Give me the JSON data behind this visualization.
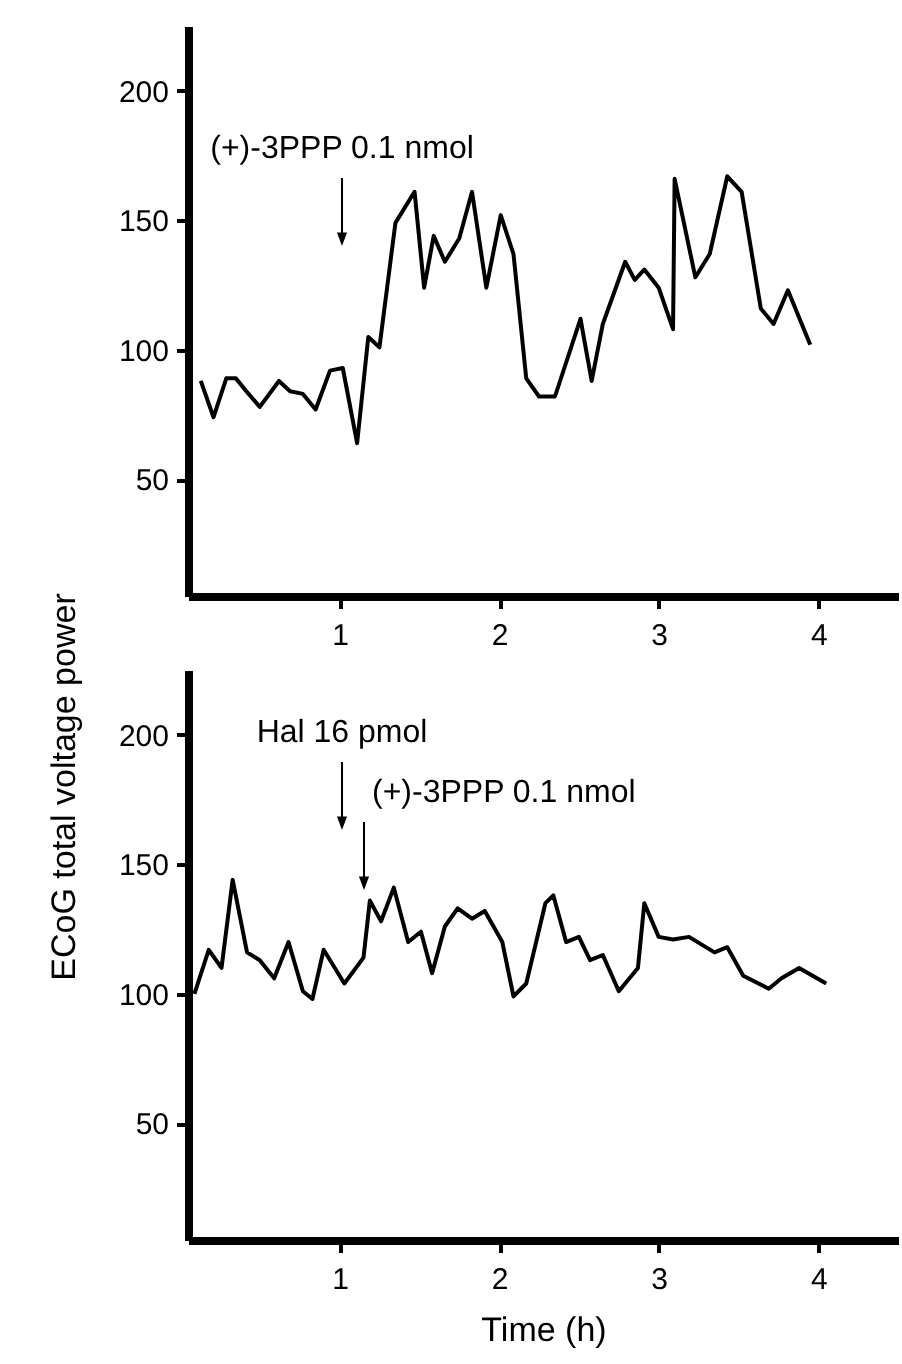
{
  "chart_data": [
    {
      "type": "line",
      "xlim": [
        0.05,
        4.5
      ],
      "xticks": [
        1,
        2,
        3,
        4
      ],
      "ylim": [
        5,
        225
      ],
      "yticks": [
        50,
        100,
        150,
        200
      ],
      "grid": false,
      "line_style": "solid",
      "annotations": [
        "(+)-3PPP 0.1 nmol"
      ],
      "series": [
        {
          "color": "#000000",
          "x": [
            0.13,
            0.21,
            0.29,
            0.35,
            0.43,
            0.5,
            0.62,
            0.69,
            0.77,
            0.85,
            0.94,
            1.02,
            1.11,
            1.18,
            1.25,
            1.35,
            1.47,
            1.53,
            1.59,
            1.66,
            1.75,
            1.83,
            1.92,
            2.01,
            2.09,
            2.17,
            2.25,
            2.35,
            2.51,
            2.58,
            2.65,
            2.79,
            2.85,
            2.91,
            3.0,
            3.09,
            3.1,
            3.23,
            3.32,
            3.43,
            3.52,
            3.64,
            3.72,
            3.81,
            3.95
          ],
          "values": [
            88,
            74,
            89,
            89,
            83,
            78,
            88,
            84,
            83,
            77,
            92,
            93,
            64,
            105,
            101,
            149,
            161,
            124,
            144,
            134,
            143,
            161,
            124,
            152,
            137,
            89,
            82,
            82,
            112,
            88,
            110,
            134,
            127,
            131,
            124,
            108,
            166,
            128,
            137,
            167,
            161,
            116,
            110,
            123,
            102
          ]
        }
      ]
    },
    {
      "type": "line",
      "xlim": [
        0.05,
        4.5
      ],
      "xticks": [
        1,
        2,
        3,
        4
      ],
      "ylim": [
        5,
        225
      ],
      "yticks": [
        50,
        100,
        150,
        200
      ],
      "grid": false,
      "line_style": "solid",
      "xlabel": "Time (h)",
      "ylabel": "ECoG total voltage power",
      "annotations": [
        "Hal 16 pmol",
        "(+)-3PPP 0.1 nmol"
      ],
      "series": [
        {
          "color": "#000000",
          "x": [
            0.09,
            0.18,
            0.26,
            0.33,
            0.42,
            0.5,
            0.59,
            0.68,
            0.77,
            0.83,
            0.9,
            1.03,
            1.15,
            1.19,
            1.26,
            1.34,
            1.43,
            1.51,
            1.58,
            1.66,
            1.74,
            1.83,
            1.91,
            2.02,
            2.09,
            2.17,
            2.29,
            2.34,
            2.42,
            2.5,
            2.57,
            2.65,
            2.75,
            2.87,
            2.91,
            3.0,
            3.09,
            3.19,
            3.35,
            3.43,
            3.53,
            3.69,
            3.77,
            3.88,
            4.05
          ],
          "values": [
            100,
            117,
            110,
            144,
            116,
            113,
            106,
            120,
            101,
            98,
            117,
            104,
            114,
            136,
            128,
            141,
            120,
            124,
            108,
            126,
            133,
            129,
            132,
            120,
            99,
            104,
            135,
            138,
            120,
            122,
            113,
            115,
            101,
            110,
            135,
            122,
            121,
            122,
            116,
            118,
            107,
            102,
            106,
            110,
            104
          ]
        }
      ]
    }
  ]
}
